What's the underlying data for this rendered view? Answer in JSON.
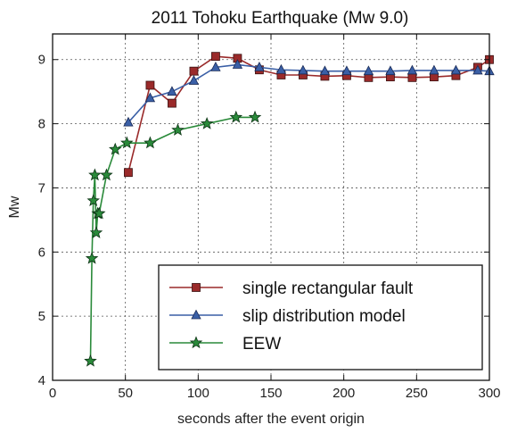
{
  "chart_data": {
    "type": "line",
    "title": "2011 Tohoku Earthquake (Mw 9.0)",
    "xlabel": "seconds after the event origin",
    "ylabel": "Mw",
    "xlim": [
      0,
      300
    ],
    "ylim": [
      4,
      9.4
    ],
    "xticks": [
      "0",
      "50",
      "100",
      "150",
      "200",
      "250",
      "300"
    ],
    "yticks": [
      "4",
      "5",
      "6",
      "7",
      "8",
      "9"
    ],
    "grid": true,
    "legend_position": "lower-right",
    "series": [
      {
        "name": "single rectangular fault",
        "color": "#9a2a2a",
        "marker": "square",
        "x": [
          52,
          67,
          82,
          97,
          112,
          127,
          142,
          157,
          172,
          187,
          202,
          217,
          232,
          247,
          262,
          277,
          292,
          300
        ],
        "y": [
          7.24,
          8.6,
          8.32,
          8.82,
          9.05,
          9.02,
          8.84,
          8.76,
          8.76,
          8.74,
          8.75,
          8.72,
          8.73,
          8.72,
          8.73,
          8.75,
          8.88,
          9.0
        ]
      },
      {
        "name": "slip distribution model",
        "color": "#3a5fa6",
        "marker": "triangle",
        "x": [
          52,
          67,
          82,
          97,
          112,
          127,
          142,
          157,
          172,
          187,
          202,
          217,
          232,
          247,
          262,
          277,
          292,
          300
        ],
        "y": [
          8.02,
          8.4,
          8.5,
          8.67,
          8.88,
          8.92,
          8.88,
          8.84,
          8.83,
          8.82,
          8.82,
          8.82,
          8.82,
          8.83,
          8.83,
          8.83,
          8.83,
          8.82
        ]
      },
      {
        "name": "EEW",
        "color": "#2a8a3a",
        "marker": "star",
        "x": [
          26,
          27,
          28,
          29,
          30,
          31,
          32,
          37,
          43,
          51,
          67,
          86,
          106,
          126,
          139
        ],
        "y": [
          4.3,
          5.9,
          6.8,
          7.2,
          6.3,
          6.6,
          6.6,
          7.2,
          7.6,
          7.7,
          7.7,
          7.9,
          8.0,
          8.1,
          8.1
        ]
      }
    ]
  }
}
